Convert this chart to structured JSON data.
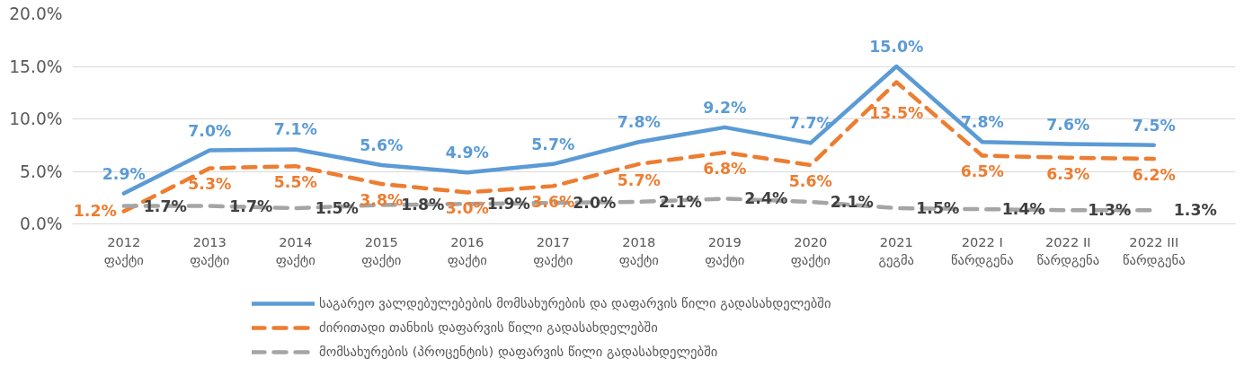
{
  "chart_data": {
    "type": "line",
    "categories": [
      "2012\nფაქტი",
      "2013\nფაქტი",
      "2014\nფაქტი",
      "2015\nფაქტი",
      "2016\nფაქტი",
      "2017\nფაქტი",
      "2018\nფაქტი",
      "2019\nფაქტი",
      "2020\nფაქტი",
      "2021\nგეგმა",
      "2022 I\nწარდგენა",
      "2022 II\nწარდგენა",
      "2022 III\nწარდგენა"
    ],
    "series": [
      {
        "name": "საგარეო ვალდებულებების მომსახურების და დაფარვის წილი გადასახდელებში",
        "color": "#5b9bd5",
        "line_style": "solid",
        "values": [
          2.9,
          7.0,
          7.1,
          5.6,
          4.9,
          5.7,
          7.8,
          9.2,
          7.7,
          15.0,
          7.8,
          7.6,
          7.5
        ],
        "value_labels": [
          "2.9%",
          "7.0%",
          "7.1%",
          "5.6%",
          "4.9%",
          "5.7%",
          "7.8%",
          "9.2%",
          "7.7%",
          "15.0%",
          "7.8%",
          "7.6%",
          "7.5%"
        ]
      },
      {
        "name": "ძირითადი თანხის დაფარვის წილი გადასახდელებში",
        "color": "#ed7d31",
        "line_style": "dashed",
        "values": [
          1.2,
          5.3,
          5.5,
          3.8,
          3.0,
          3.6,
          5.7,
          6.8,
          5.6,
          13.5,
          6.5,
          6.3,
          6.2
        ],
        "value_labels": [
          "1.2%",
          "5.3%",
          "5.5%",
          "3.8%",
          "3.0%",
          "3.6%",
          "5.7%",
          "6.8%",
          "5.6%",
          "13.5%",
          "6.5%",
          "6.3%",
          "6.2%"
        ]
      },
      {
        "name": "მომსახურების (პროცენტის) დაფარვის წილი გადასახდელებში",
        "color": "#a5a5a5",
        "line_style": "dashed",
        "values": [
          1.7,
          1.7,
          1.5,
          1.8,
          1.9,
          2.0,
          2.1,
          2.4,
          2.1,
          1.5,
          1.4,
          1.3,
          1.3
        ],
        "value_labels": [
          "1.7%",
          "1.7%",
          "1.5%",
          "1.8%",
          "1.9%",
          "2.0%",
          "2.1%",
          "2.4%",
          "2.1%",
          "1.5%",
          "1.4%",
          "1.3%",
          "1.3%"
        ]
      }
    ],
    "ylim": [
      0,
      20
    ],
    "yticks": [
      {
        "value": 0,
        "label": "0.0%"
      },
      {
        "value": 5,
        "label": "5.0%"
      },
      {
        "value": 10,
        "label": "10.0%"
      },
      {
        "value": 15,
        "label": "15.0%"
      },
      {
        "value": 20,
        "label": "20.0%"
      }
    ],
    "grid": "y",
    "legend": "bottom",
    "marker": "none"
  }
}
